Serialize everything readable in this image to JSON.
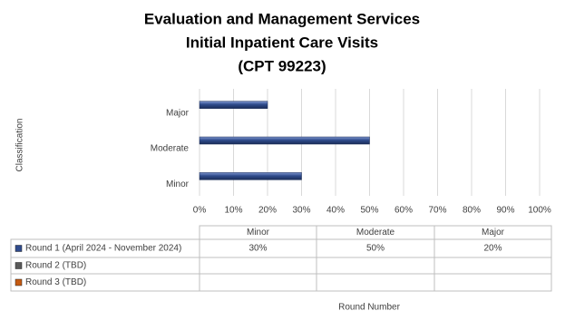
{
  "chart_data": {
    "type": "bar",
    "orientation": "horizontal",
    "title": [
      "Evaluation and Management Services",
      "Initial Inpatient Care Visits",
      "(CPT 99223)"
    ],
    "y_label": "Classification",
    "x_label": "Round Number",
    "categories": [
      "Minor",
      "Moderate",
      "Major"
    ],
    "series": [
      {
        "name": "Round 1 (April 2024 - November 2024)",
        "color": "#2f4b8c",
        "values": [
          30,
          50,
          20
        ],
        "value_labels": [
          "30%",
          "50%",
          "20%"
        ]
      },
      {
        "name": "Round 2 (TBD)",
        "color": "#595959",
        "values": [
          null,
          null,
          null
        ]
      },
      {
        "name": "Round 3 (TBD)",
        "color": "#c55a11",
        "values": [
          null,
          null,
          null
        ]
      }
    ],
    "xlim": [
      0,
      100
    ],
    "xticks": [
      {
        "value": 0,
        "label": "0%"
      },
      {
        "value": 10,
        "label": "10%"
      },
      {
        "value": 20,
        "label": "20%"
      },
      {
        "value": 30,
        "label": "30%"
      },
      {
        "value": 40,
        "label": "40%"
      },
      {
        "value": 50,
        "label": "50%"
      },
      {
        "value": 60,
        "label": "60%"
      },
      {
        "value": 70,
        "label": "70%"
      },
      {
        "value": 80,
        "label": "80%"
      },
      {
        "value": 90,
        "label": "90%"
      },
      {
        "value": 100,
        "label": "100%"
      }
    ],
    "grid": true,
    "legend": "table"
  }
}
